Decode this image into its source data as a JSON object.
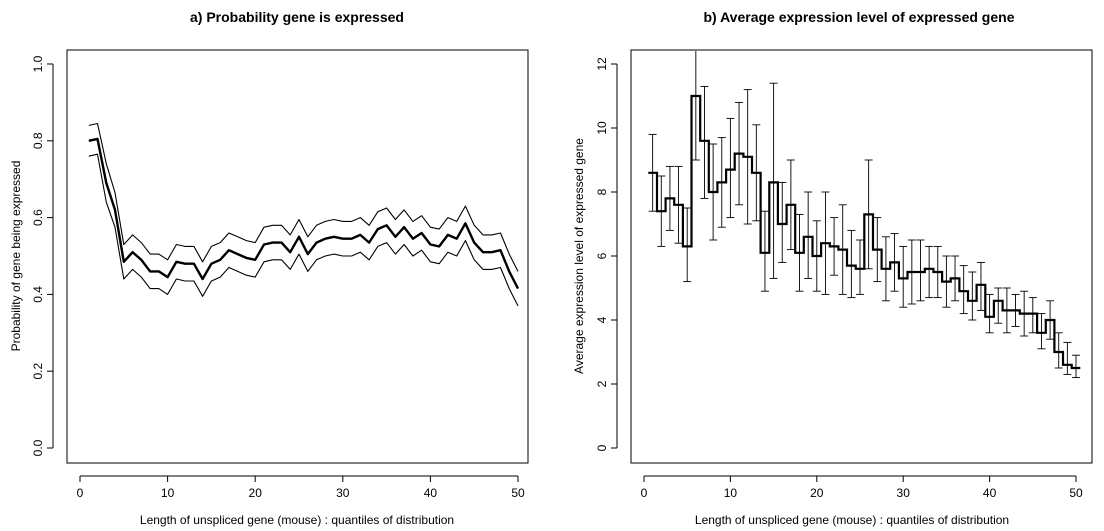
{
  "chart_data": [
    {
      "type": "line",
      "title": "a) Probability gene is expressed",
      "xlabel": "Length of unspliced gene (mouse) : quantiles of distribution",
      "ylabel": "Probability of gene being expressed",
      "xlim": [
        0,
        51
      ],
      "ylim": [
        0,
        1.0
      ],
      "xticks": [
        "0",
        "10",
        "20",
        "30",
        "40",
        "50"
      ],
      "yticks": [
        "0.0",
        "0.2",
        "0.4",
        "0.6",
        "0.8",
        "1.0"
      ],
      "x": [
        1,
        2,
        3,
        4,
        5,
        6,
        7,
        8,
        9,
        10,
        11,
        12,
        13,
        14,
        15,
        16,
        17,
        18,
        19,
        20,
        21,
        22,
        23,
        24,
        25,
        26,
        27,
        28,
        29,
        30,
        31,
        32,
        33,
        34,
        35,
        36,
        37,
        38,
        39,
        40,
        41,
        42,
        43,
        44,
        45,
        46,
        47,
        48,
        49,
        50
      ],
      "series": [
        {
          "role": "estimate",
          "values": [
            0.8,
            0.805,
            0.69,
            0.62,
            0.485,
            0.51,
            0.49,
            0.46,
            0.46,
            0.445,
            0.485,
            0.48,
            0.48,
            0.44,
            0.48,
            0.49,
            0.515,
            0.505,
            0.495,
            0.49,
            0.53,
            0.535,
            0.535,
            0.51,
            0.55,
            0.505,
            0.535,
            0.545,
            0.55,
            0.545,
            0.545,
            0.555,
            0.535,
            0.57,
            0.58,
            0.55,
            0.575,
            0.545,
            0.56,
            0.53,
            0.525,
            0.555,
            0.545,
            0.585,
            0.535,
            0.51,
            0.51,
            0.515,
            0.46,
            0.415
          ]
        },
        {
          "role": "upper",
          "values": [
            0.84,
            0.845,
            0.74,
            0.665,
            0.53,
            0.555,
            0.535,
            0.505,
            0.505,
            0.49,
            0.53,
            0.525,
            0.525,
            0.485,
            0.525,
            0.535,
            0.56,
            0.55,
            0.54,
            0.535,
            0.575,
            0.58,
            0.58,
            0.555,
            0.595,
            0.55,
            0.58,
            0.59,
            0.595,
            0.59,
            0.59,
            0.6,
            0.58,
            0.615,
            0.625,
            0.595,
            0.62,
            0.59,
            0.605,
            0.575,
            0.57,
            0.6,
            0.59,
            0.63,
            0.58,
            0.555,
            0.555,
            0.56,
            0.505,
            0.46
          ]
        },
        {
          "role": "lower",
          "values": [
            0.76,
            0.765,
            0.64,
            0.575,
            0.44,
            0.465,
            0.445,
            0.415,
            0.415,
            0.4,
            0.44,
            0.435,
            0.435,
            0.395,
            0.435,
            0.445,
            0.47,
            0.46,
            0.45,
            0.445,
            0.485,
            0.49,
            0.49,
            0.465,
            0.505,
            0.46,
            0.49,
            0.5,
            0.505,
            0.5,
            0.5,
            0.51,
            0.49,
            0.525,
            0.535,
            0.505,
            0.53,
            0.5,
            0.515,
            0.485,
            0.48,
            0.51,
            0.5,
            0.54,
            0.49,
            0.465,
            0.465,
            0.47,
            0.415,
            0.37
          ]
        }
      ]
    },
    {
      "type": "line",
      "title": "b) Average expression level of expressed gene",
      "xlabel": "Length of unspliced gene (mouse) : quantiles of distribution",
      "ylabel": "Average expression level of expressed gene",
      "xlim": [
        0,
        52
      ],
      "ylim": [
        0,
        12.5
      ],
      "xticks": [
        "0",
        "10",
        "20",
        "30",
        "40",
        "50"
      ],
      "yticks": [
        "0",
        "2",
        "4",
        "6",
        "8",
        "10",
        "12"
      ],
      "style": "step-with-error-bars",
      "x": [
        1,
        2,
        3,
        4,
        5,
        6,
        7,
        8,
        9,
        10,
        11,
        12,
        13,
        14,
        15,
        16,
        17,
        18,
        19,
        20,
        21,
        22,
        23,
        24,
        25,
        26,
        27,
        28,
        29,
        30,
        31,
        32,
        33,
        34,
        35,
        36,
        37,
        38,
        39,
        40,
        41,
        42,
        43,
        44,
        45,
        46,
        47,
        48,
        49,
        50
      ],
      "values": [
        8.6,
        7.4,
        7.8,
        7.6,
        6.3,
        11.0,
        9.6,
        8.0,
        8.3,
        8.7,
        9.2,
        9.1,
        8.6,
        6.1,
        8.3,
        7.0,
        7.6,
        6.1,
        6.6,
        6.0,
        6.4,
        6.3,
        6.2,
        5.7,
        5.6,
        7.3,
        6.2,
        5.6,
        5.8,
        5.3,
        5.5,
        5.5,
        5.6,
        5.5,
        5.2,
        5.3,
        4.9,
        4.6,
        5.1,
        4.1,
        4.6,
        4.3,
        4.3,
        4.2,
        4.2,
        3.6,
        4.0,
        3.0,
        2.6,
        2.5
      ],
      "err_upper": [
        9.8,
        8.5,
        8.8,
        8.8,
        7.5,
        12.8,
        11.3,
        9.5,
        9.7,
        10.3,
        10.8,
        11.2,
        10.1,
        7.4,
        11.4,
        8.3,
        9.0,
        7.3,
        8.0,
        7.1,
        8.0,
        7.2,
        7.6,
        6.8,
        6.5,
        9.0,
        7.2,
        6.6,
        6.7,
        6.3,
        6.5,
        6.5,
        6.3,
        6.3,
        6.0,
        6.0,
        5.7,
        5.5,
        5.8,
        4.8,
        5.0,
        5.0,
        4.8,
        4.9,
        4.7,
        4.2,
        4.6,
        3.6,
        3.3,
        2.9
      ],
      "err_lower": [
        7.4,
        6.3,
        6.8,
        6.4,
        5.2,
        9.0,
        7.8,
        6.5,
        6.9,
        7.2,
        7.6,
        7.0,
        7.1,
        4.9,
        5.3,
        5.8,
        6.2,
        4.9,
        5.3,
        4.9,
        4.8,
        5.4,
        4.8,
        4.7,
        4.8,
        5.6,
        5.2,
        4.6,
        4.9,
        4.4,
        4.5,
        4.6,
        4.7,
        4.7,
        4.4,
        4.6,
        4.2,
        4.0,
        4.3,
        3.6,
        3.9,
        3.6,
        3.8,
        3.5,
        3.6,
        3.1,
        3.4,
        2.5,
        2.3,
        2.2
      ]
    }
  ]
}
